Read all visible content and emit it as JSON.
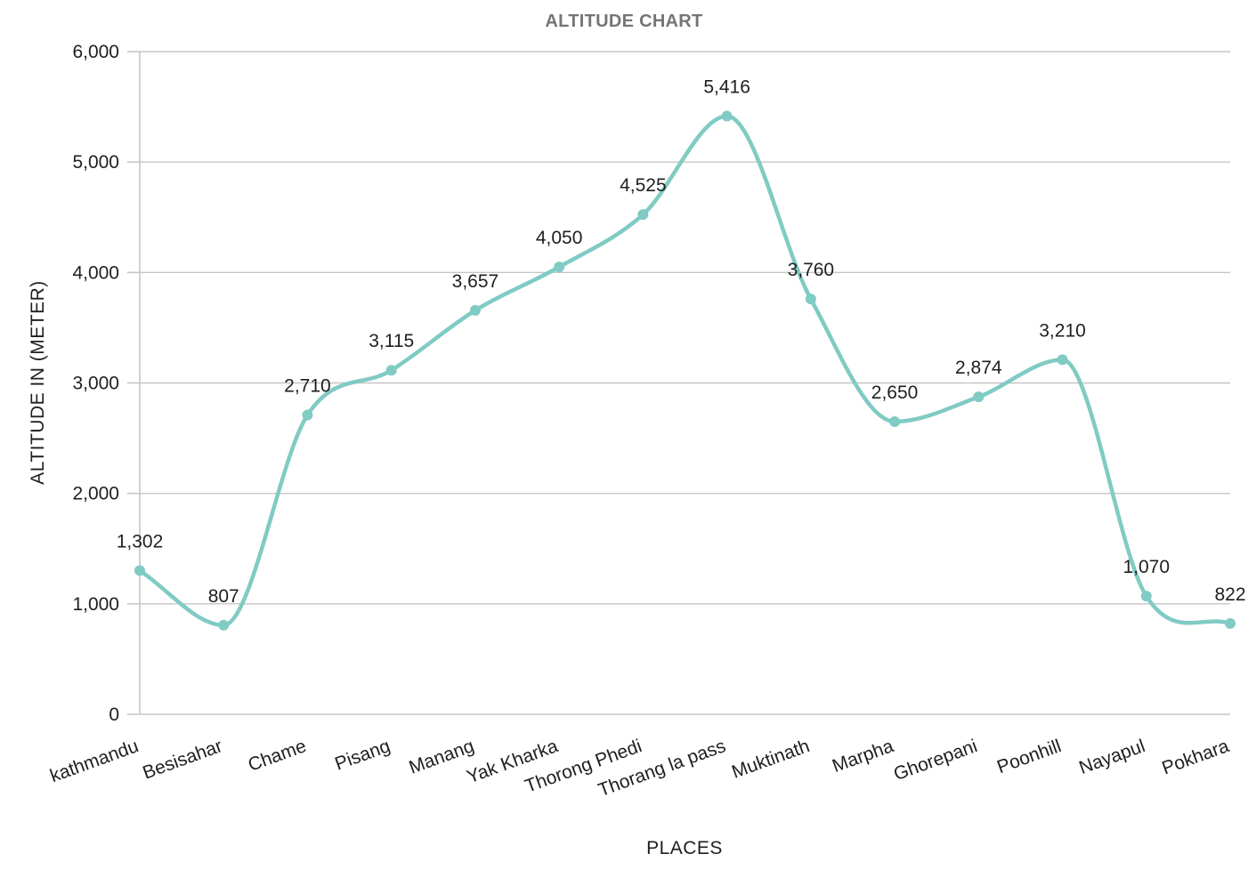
{
  "chart_data": {
    "type": "line",
    "title": "ALTITUDE CHART",
    "xlabel": "PLACES",
    "ylabel": "ALTITUDE IN (METER)",
    "categories": [
      "kathmandu",
      "Besisahar",
      "Chame",
      "Pisang",
      "Manang",
      "Yak Kharka",
      "Thorong Phedi",
      "Thorang la pass",
      "Muktinath",
      "Marpha",
      "Ghorepani",
      "Poonhill",
      "Nayapul",
      "Pokhara"
    ],
    "series": [
      {
        "values": [
          1302,
          807,
          2710,
          3115,
          3657,
          4050,
          4525,
          5416,
          3760,
          2650,
          2874,
          3210,
          1070,
          822
        ],
        "labels": [
          "1,302",
          "807",
          "2,710",
          "3,115",
          "3,657",
          "4,050",
          "4,525",
          "5,416",
          "3,760",
          "2,650",
          "2,874",
          "3,210",
          "1,070",
          "822"
        ]
      }
    ],
    "ylim": [
      0,
      6000
    ],
    "yticks": [
      0,
      1000,
      2000,
      3000,
      4000,
      5000,
      6000
    ],
    "ytick_labels": [
      "0",
      "1,000",
      "2,000",
      "3,000",
      "4,000",
      "5,000",
      "6,000"
    ],
    "line_color": "#80cbc4",
    "smooth": true,
    "grid": true,
    "legend": "none"
  }
}
